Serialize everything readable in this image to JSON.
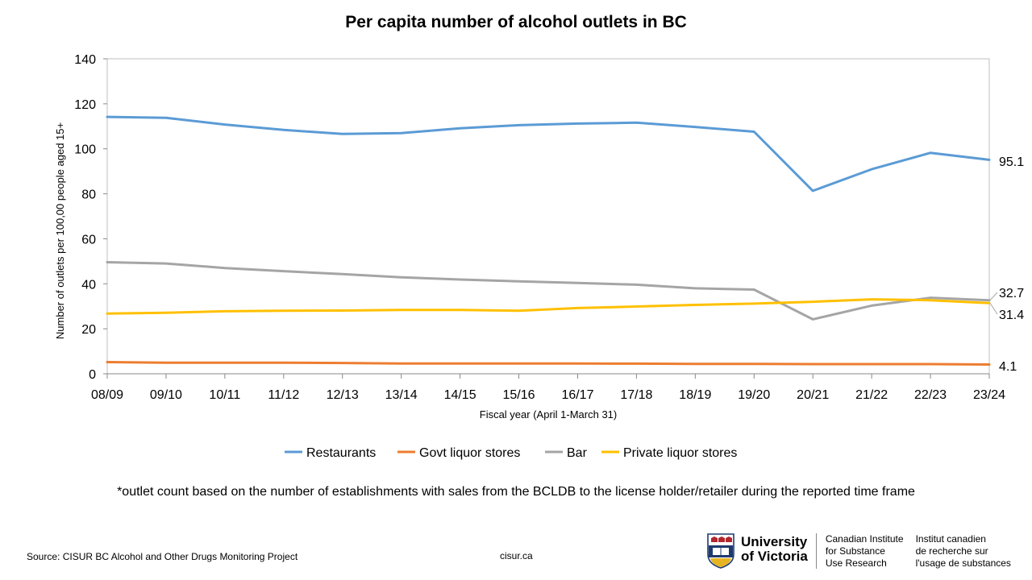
{
  "title": "Per capita number of alcohol outlets in BC",
  "chart_data": {
    "type": "line",
    "title": "Per capita number of alcohol outlets in BC",
    "xlabel": "Fiscal year (April 1-March 31)",
    "ylabel": "Number of outlets per 100,00 people aged 15+",
    "ylim": [
      0,
      140
    ],
    "yticks": [
      0,
      20,
      40,
      60,
      80,
      100,
      120,
      140
    ],
    "grid": false,
    "legend_position": "bottom",
    "categories": [
      "08/09",
      "09/10",
      "10/11",
      "11/12",
      "12/13",
      "13/14",
      "14/15",
      "15/16",
      "16/17",
      "17/18",
      "18/19",
      "19/20",
      "20/21",
      "21/22",
      "22/23",
      "23/24"
    ],
    "series": [
      {
        "name": "Restaurants",
        "color": "#5B9BD5",
        "values": [
          114.2,
          113.8,
          110.8,
          108.4,
          106.6,
          107.0,
          109.1,
          110.5,
          111.2,
          111.6,
          109.7,
          107.6,
          81.3,
          90.9,
          98.2,
          95.1
        ]
      },
      {
        "name": "Govt liquor stores",
        "color": "#ED7D31",
        "values": [
          5.2,
          4.9,
          4.9,
          4.9,
          4.8,
          4.6,
          4.6,
          4.6,
          4.6,
          4.5,
          4.4,
          4.4,
          4.3,
          4.3,
          4.3,
          4.1
        ]
      },
      {
        "name": "Bar",
        "color": "#A5A5A5",
        "values": [
          49.6,
          49.0,
          47.0,
          45.6,
          44.3,
          42.9,
          41.9,
          41.1,
          40.4,
          39.6,
          38.0,
          37.4,
          24.2,
          30.3,
          33.8,
          32.7
        ]
      },
      {
        "name": "Private liquor stores",
        "color": "#FFC000",
        "values": [
          26.8,
          27.1,
          27.8,
          28.0,
          28.1,
          28.4,
          28.4,
          28.0,
          29.2,
          29.9,
          30.6,
          31.2,
          32.0,
          33.1,
          32.7,
          31.4
        ]
      }
    ],
    "end_labels": [
      {
        "series": "Restaurants",
        "text": "95.1"
      },
      {
        "series": "Bar",
        "text": "32.7"
      },
      {
        "series": "Private liquor stores",
        "text": "31.4"
      },
      {
        "series": "Govt liquor stores",
        "text": "4.1"
      }
    ]
  },
  "footnote": "*outlet count based on the number of establishments with sales from the BCLDB to the license holder/retailer during the reported time frame",
  "source": "Source: CISUR BC Alcohol and Other Drugs Monitoring Project",
  "website": "cisur.ca",
  "logo": {
    "university": "University\nof Victoria",
    "org_en": "Canadian Institute\nfor Substance\nUse Research",
    "org_fr": "Institut canadien\nde recherche sur\nl'usage de substances"
  }
}
